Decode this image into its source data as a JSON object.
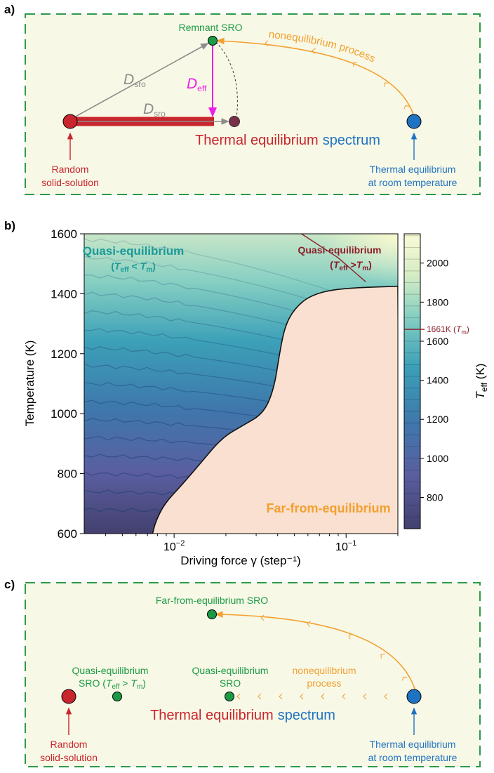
{
  "colors": {
    "panel_bg": "#f8f8e6",
    "dash_border": "#2e9a4a",
    "red": "#c8252d",
    "blue": "#1e73c2",
    "green": "#1a9a45",
    "orange": "#f2a030",
    "magenta": "#ee1ee8",
    "gray": "#8c8c8c",
    "maroon": "#8b1e2a",
    "teal": "#1a9a9a",
    "far_eq_fill": "#fae0d0",
    "far_eq_text": "#f2a030"
  },
  "panel_a": {
    "label": "a)",
    "remnant_sro": "Remnant SRO",
    "nonequilibrium": "nonequilibrium process",
    "d_eff_main": "D",
    "d_eff_sub": "eff",
    "d_sro_main": "D",
    "d_sro_sub": "sro",
    "spectrum": {
      "part1": "Thermal equilibrium",
      "part2": "spectrum"
    },
    "random_line1": "Random",
    "random_line2": "solid-solution",
    "thermal_line1": "Thermal equilibrium",
    "thermal_line2": "at room temperature"
  },
  "panel_b": {
    "label": "b)",
    "quasi_left_title": "Quasi-equilibrium",
    "quasi_left_cond": {
      "open": "(",
      "t": "T",
      "eff": "eff",
      "op": " < ",
      "t2": "T",
      "m": "m",
      "close": ")"
    },
    "quasi_right_title": "Quasi-equilibrium",
    "quasi_right_cond": {
      "open": "(",
      "t": "T",
      "eff": "eff",
      "op": " >",
      "t2": "T",
      "m": "m",
      "close": ")"
    },
    "far_label": "Far-from-equilibrium",
    "tm_marker": {
      "value": "1661K (",
      "t": "T",
      "m": "m",
      "close": ")"
    }
  },
  "panel_c": {
    "label": "c)",
    "far_sro": "Far-from-equilibrium SRO",
    "quasi_tm_line1": "Quasi-equilibrium",
    "quasi_tm_line2": {
      "pre": "SRO (",
      "t": "T",
      "eff": "eff",
      "op": " > ",
      "t2": "T",
      "m": "m",
      "close": ")"
    },
    "quasi_sro_line1": "Quasi-equilibrium",
    "quasi_sro_line2": "SRO",
    "noneq_line1": "nonequilibrium",
    "noneq_line2": "process",
    "spectrum": {
      "part1": "Thermal equilibrium",
      "part2": "spectrum"
    },
    "random_line1": "Random",
    "random_line2": "solid-solution",
    "thermal_line1": "Thermal equilibrium",
    "thermal_line2": "at room temperature"
  },
  "chart_data": {
    "type": "heatmap",
    "xlabel": "Driving force γ (step⁻¹)",
    "ylabel": "Temperature (K)",
    "colorbar_label": "T_eff (K)",
    "x_scale": "log",
    "xlim": [
      0.003,
      0.2
    ],
    "ylim": [
      600,
      1600
    ],
    "x_ticks": [
      {
        "value": 0.01,
        "base": "10",
        "exp": "−2"
      },
      {
        "value": 0.1,
        "base": "10",
        "exp": "−1"
      }
    ],
    "y_ticks": [
      "600",
      "800",
      "1000",
      "1200",
      "1400",
      "1600"
    ],
    "colorbar_range": [
      640,
      2150
    ],
    "colorbar_ticks": [
      "800",
      "1000",
      "1200",
      "1400",
      "1600",
      "1800",
      "2000"
    ],
    "tm_value": 1661,
    "boundary": [
      [
        0.0075,
        600
      ],
      [
        0.0078,
        640
      ],
      [
        0.0088,
        700
      ],
      [
        0.011,
        760
      ],
      [
        0.0145,
        840
      ],
      [
        0.019,
        920
      ],
      [
        0.025,
        960
      ],
      [
        0.033,
        1000
      ],
      [
        0.038,
        1080
      ],
      [
        0.041,
        1200
      ],
      [
        0.044,
        1290
      ],
      [
        0.05,
        1350
      ],
      [
        0.062,
        1395
      ],
      [
        0.09,
        1418
      ],
      [
        0.2,
        1425
      ]
    ]
  }
}
